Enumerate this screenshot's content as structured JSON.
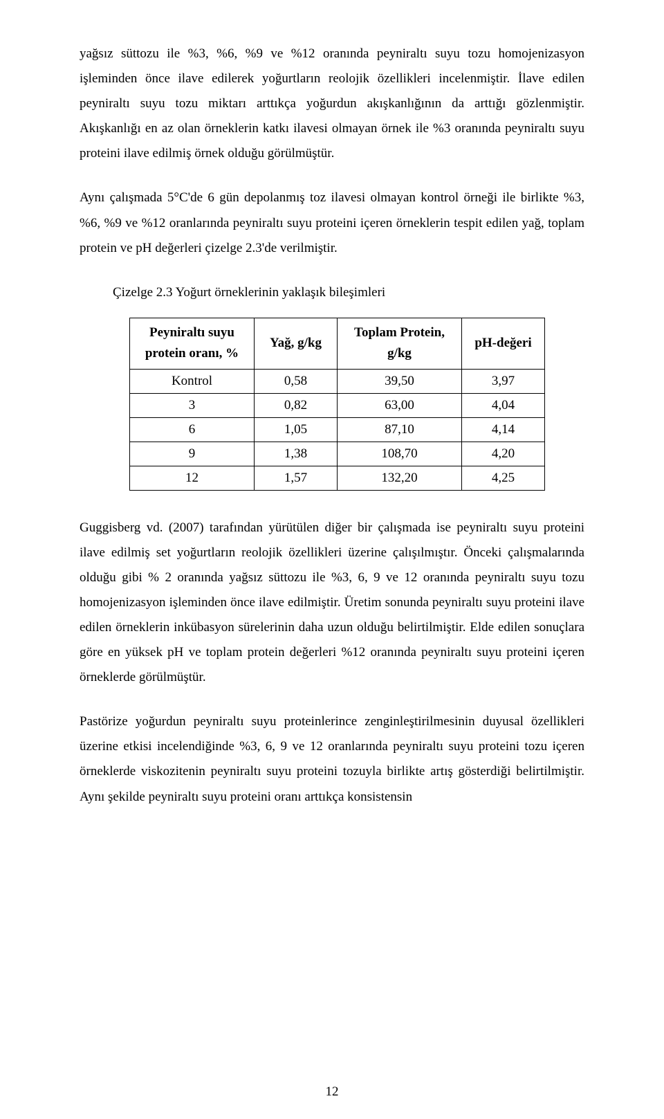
{
  "paragraphs": {
    "p1": "yağsız süttozu ile %3, %6, %9 ve %12 oranında peyniraltı suyu tozu homojenizasyon işleminden önce ilave edilerek yoğurtların reolojik özellikleri incelenmiştir. İlave edilen peyniraltı suyu tozu miktarı arttıkça yoğurdun akışkanlığının da arttığı gözlenmiştir. Akışkanlığı en az olan örneklerin katkı ilavesi olmayan örnek ile %3 oranında peyniraltı suyu proteini ilave edilmiş örnek olduğu görülmüştür.",
    "p2": "Aynı çalışmada 5°C'de 6 gün depolanmış toz ilavesi olmayan kontrol örneği ile birlikte %3, %6, %9 ve %12 oranlarında peyniraltı suyu proteini içeren örneklerin tespit edilen yağ, toplam protein ve pH değerleri çizelge 2.3'de verilmiştir.",
    "p3": "Guggisberg vd. (2007) tarafından yürütülen diğer bir çalışmada ise peyniraltı suyu proteini ilave edilmiş set yoğurtların reolojik özellikleri üzerine çalışılmıştır. Önceki çalışmalarında olduğu gibi % 2 oranında yağsız süttozu ile %3, 6, 9 ve 12 oranında peyniraltı suyu tozu homojenizasyon işleminden önce ilave edilmiştir. Üretim sonunda peyniraltı suyu proteini ilave edilen örneklerin inkübasyon sürelerinin daha uzun olduğu belirtilmiştir. Elde edilen sonuçlara göre en yüksek pH ve toplam protein değerleri %12 oranında peyniraltı suyu proteini içeren örneklerde görülmüştür.",
    "p4": "Pastörize yoğurdun peyniraltı suyu proteinlerince zenginleştirilmesinin duyusal özellikleri üzerine etkisi incelendiğinde %3, 6, 9 ve 12 oranlarında peyniraltı suyu proteini tozu içeren örneklerde viskozitenin peyniraltı suyu proteini tozuyla birlikte artış gösterdiği belirtilmiştir. Aynı şekilde peyniraltı suyu proteini oranı arttıkça konsistensin"
  },
  "table": {
    "caption": "Çizelge 2.3 Yoğurt örneklerinin yaklaşık bileşimleri",
    "headers": {
      "c0a": "Peyniraltı suyu",
      "c0b": "protein oranı, %",
      "c1": "Yağ, g/kg",
      "c2a": "Toplam Protein,",
      "c2b": "g/kg",
      "c3": "pH-değeri"
    },
    "rows": [
      {
        "c0": "Kontrol",
        "c1": "0,58",
        "c2": "39,50",
        "c3": "3,97"
      },
      {
        "c0": "3",
        "c1": "0,82",
        "c2": "63,00",
        "c3": "4,04"
      },
      {
        "c0": "6",
        "c1": "1,05",
        "c2": "87,10",
        "c3": "4,14"
      },
      {
        "c0": "9",
        "c1": "1,38",
        "c2": "108,70",
        "c3": "4,20"
      },
      {
        "c0": "12",
        "c1": "1,57",
        "c2": "132,20",
        "c3": "4,25"
      }
    ]
  },
  "pageNumber": "12"
}
